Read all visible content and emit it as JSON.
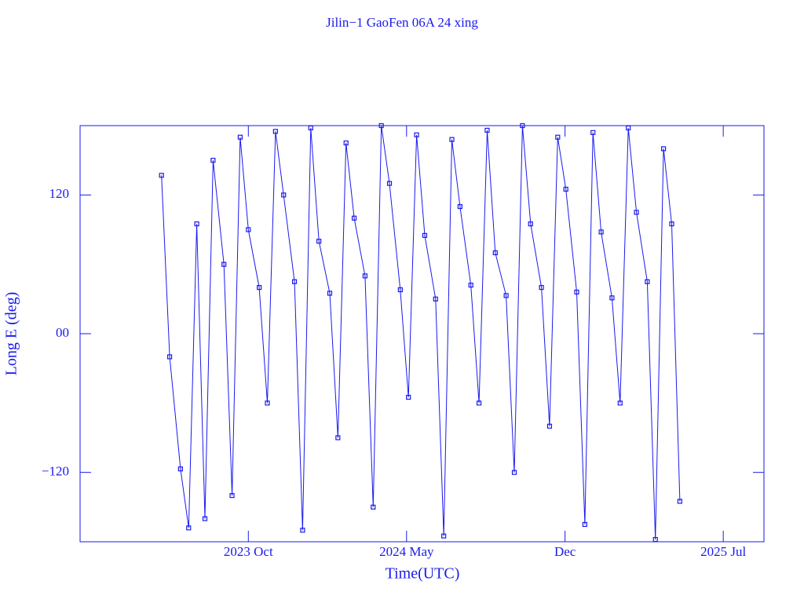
{
  "chart_data": {
    "type": "line",
    "title": "Jilin−1 GaoFen 06A 24 xing",
    "xlabel": "Time(UTC)",
    "ylabel": "Long E (deg)",
    "color": "#1a1aee",
    "x": [
      2023.43,
      2023.46,
      2023.5,
      2023.53,
      2023.56,
      2023.59,
      2023.62,
      2023.66,
      2023.69,
      2023.72,
      2023.75,
      2023.79,
      2023.82,
      2023.85,
      2023.88,
      2023.92,
      2023.95,
      2023.98,
      2024.01,
      2024.05,
      2024.08,
      2024.11,
      2024.14,
      2024.18,
      2024.21,
      2024.24,
      2024.27,
      2024.31,
      2024.34,
      2024.37,
      2024.4,
      2024.44,
      2024.47,
      2024.5,
      2024.53,
      2024.57,
      2024.6,
      2024.63,
      2024.66,
      2024.7,
      2024.73,
      2024.76,
      2024.79,
      2024.83,
      2024.86,
      2024.89,
      2024.92,
      2024.96,
      2024.99,
      2025.02,
      2025.05,
      2025.09,
      2025.12,
      2025.15,
      2025.18,
      2025.22,
      2025.25,
      2025.28,
      2025.31,
      2025.34
    ],
    "values": [
      137,
      -20,
      -117,
      -168,
      95,
      -160,
      150,
      60,
      -140,
      170,
      90,
      40,
      -60,
      175,
      120,
      45,
      -170,
      178,
      80,
      35,
      -90,
      165,
      100,
      50,
      -150,
      180,
      130,
      38,
      -55,
      172,
      85,
      30,
      -175,
      168,
      110,
      42,
      -60,
      176,
      70,
      33,
      -120,
      180,
      95,
      40,
      -80,
      170,
      125,
      36,
      -165,
      174,
      88,
      31,
      -60,
      178,
      105,
      45,
      -178,
      160,
      95,
      -145
    ],
    "xlim": [
      2023.13,
      2025.65
    ],
    "ylim": [
      -180,
      180
    ],
    "xticks": [
      {
        "value": 2023.75,
        "label": "2023 Oct"
      },
      {
        "value": 2024.333,
        "label": "2024 May"
      },
      {
        "value": 2024.917,
        "label": "Dec"
      },
      {
        "value": 2025.5,
        "label": "2025 Jul"
      }
    ],
    "yticks": [
      {
        "value": -120,
        "label": "−120"
      },
      {
        "value": 0,
        "label": "00"
      },
      120
    ]
  }
}
